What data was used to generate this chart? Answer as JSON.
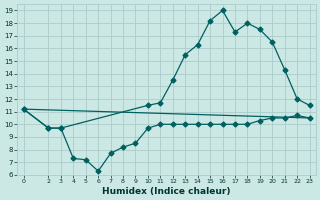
{
  "xlabel": "Humidex (Indice chaleur)",
  "bg_color": "#cce8e4",
  "grid_color": "#aacccc",
  "line_color": "#006060",
  "xlim": [
    -0.5,
    23.5
  ],
  "ylim": [
    6,
    19.5
  ],
  "xticks": [
    0,
    2,
    3,
    4,
    5,
    6,
    7,
    8,
    9,
    10,
    11,
    12,
    13,
    14,
    15,
    16,
    17,
    18,
    19,
    20,
    21,
    22,
    23
  ],
  "yticks": [
    6,
    7,
    8,
    9,
    10,
    11,
    12,
    13,
    14,
    15,
    16,
    17,
    18,
    19
  ],
  "line1_x": [
    0,
    2,
    3,
    4,
    5,
    6,
    7,
    8,
    9,
    10,
    11,
    12,
    13,
    14,
    15,
    16,
    17,
    18,
    19,
    20,
    21,
    22,
    23
  ],
  "line1_y": [
    11.2,
    9.7,
    9.7,
    7.3,
    7.2,
    6.3,
    7.7,
    8.2,
    8.5,
    9.7,
    10.0,
    10.0,
    10.0,
    10.0,
    10.0,
    10.0,
    10.0,
    10.0,
    10.3,
    10.5,
    10.5,
    10.7,
    10.5
  ],
  "line2_x": [
    0,
    2,
    3,
    10,
    11,
    12,
    13,
    14,
    15,
    16,
    17,
    18,
    19,
    20,
    21,
    22,
    23
  ],
  "line2_y": [
    11.2,
    9.7,
    9.7,
    11.5,
    11.7,
    13.5,
    15.5,
    16.3,
    18.2,
    19.0,
    17.3,
    18.0,
    17.5,
    16.5,
    14.3,
    12.0,
    11.5
  ],
  "line3_x": [
    0,
    23
  ],
  "line3_y": [
    11.2,
    10.5
  ],
  "marker": "D",
  "markersize": 2.5
}
